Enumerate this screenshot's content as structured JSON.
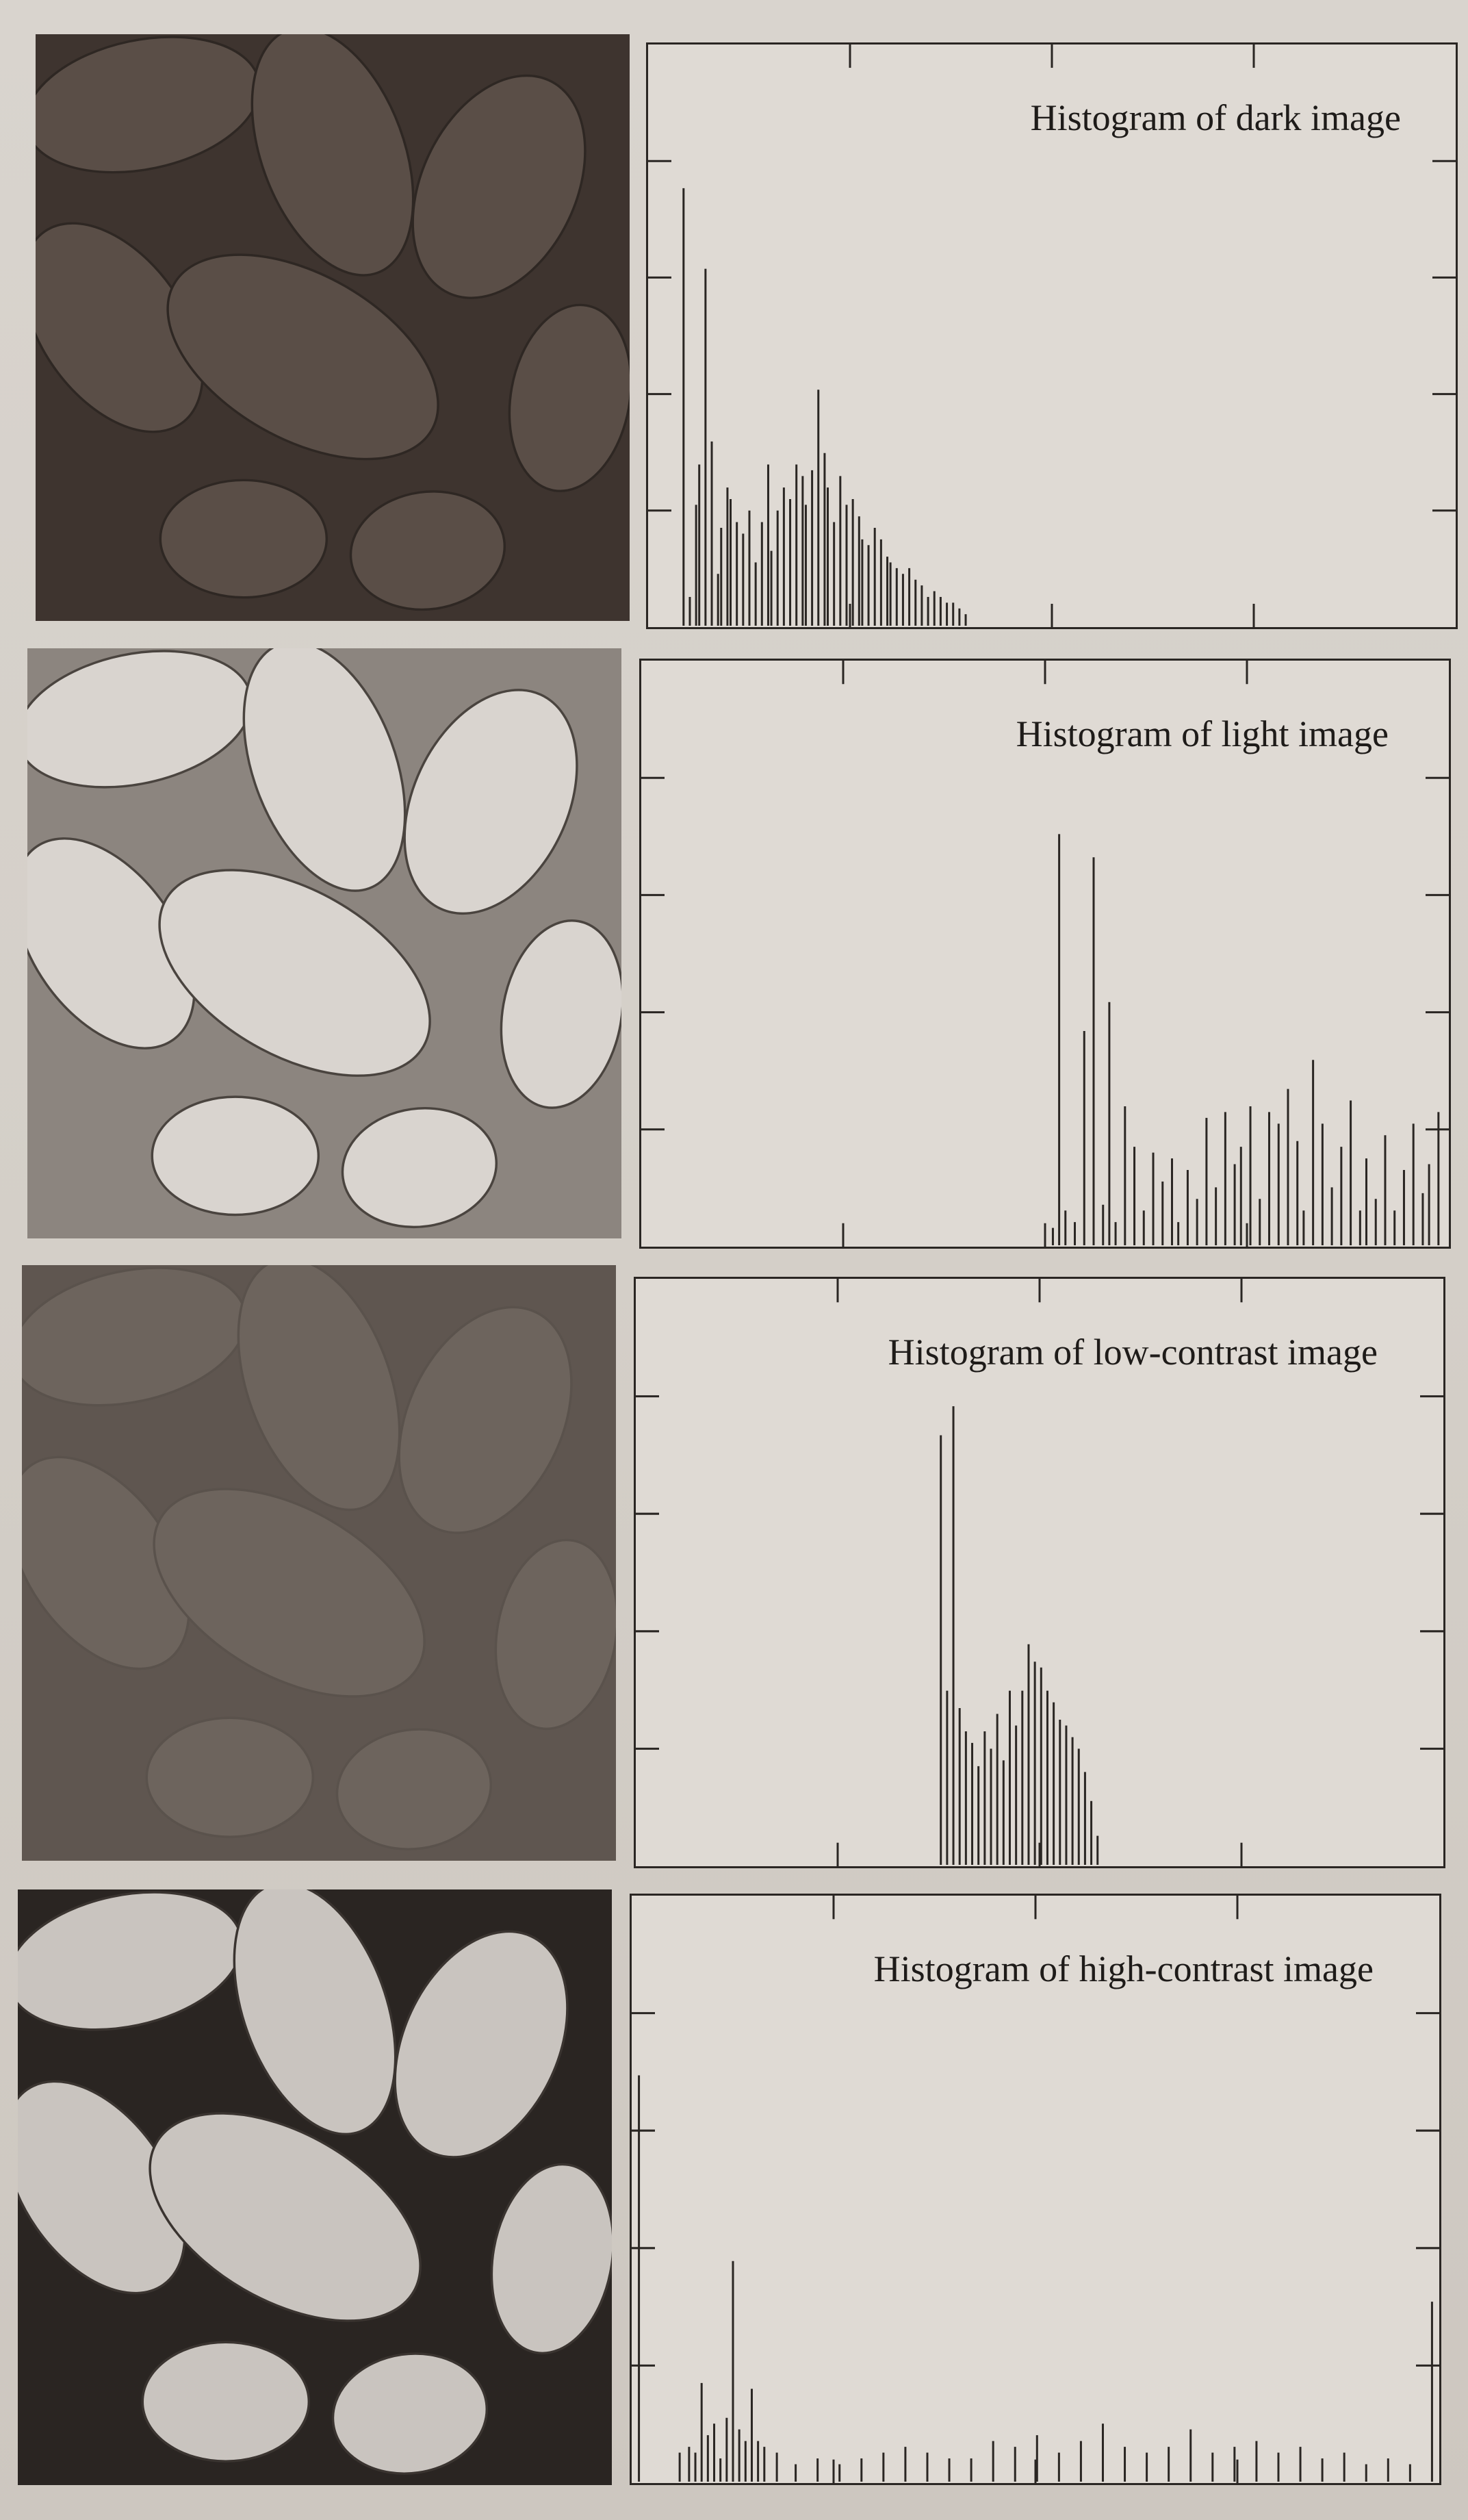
{
  "colors": {
    "page_background": "#d6d1cb",
    "histogram_bars": "#2a2623"
  },
  "panels": [
    {
      "image": "dark-image",
      "tone": {
        "base": "#3e342f",
        "blob": "#5a4e47",
        "spot": "#2e2723"
      }
    },
    {
      "image": "light-image",
      "tone": {
        "base": "#8c857f",
        "blob": "#d9d4cf",
        "spot": "#4a443f"
      }
    },
    {
      "image": "low-contrast-image",
      "tone": {
        "base": "#5f5650",
        "blob": "#6d645d",
        "spot": "#5a524c"
      }
    },
    {
      "image": "high-contrast-image",
      "tone": {
        "base": "#2a2522",
        "blob": "#c9c4bf",
        "spot": "#3a3430"
      }
    }
  ],
  "chart_data": [
    {
      "type": "bar",
      "title": "Histogram of dark image",
      "xlabel": "",
      "ylabel": "",
      "xlim": [
        0,
        255
      ],
      "ylim": [
        0,
        1
      ],
      "grid": false,
      "x": [
        10,
        12,
        14,
        15,
        17,
        19,
        21,
        22,
        24,
        25,
        27,
        29,
        31,
        33,
        35,
        37,
        38,
        40,
        42,
        44,
        46,
        48,
        49,
        51,
        53,
        55,
        56,
        58,
        60,
        62,
        64,
        66,
        67,
        69,
        71,
        73,
        75,
        76,
        78,
        80,
        82,
        84,
        86,
        88,
        90,
        92,
        94,
        96,
        98,
        100
      ],
      "values": [
        0.76,
        0.05,
        0.21,
        0.28,
        0.62,
        0.32,
        0.09,
        0.17,
        0.24,
        0.22,
        0.18,
        0.16,
        0.2,
        0.11,
        0.18,
        0.28,
        0.13,
        0.2,
        0.24,
        0.22,
        0.28,
        0.26,
        0.21,
        0.27,
        0.41,
        0.3,
        0.24,
        0.18,
        0.26,
        0.21,
        0.22,
        0.19,
        0.15,
        0.14,
        0.17,
        0.15,
        0.12,
        0.11,
        0.1,
        0.09,
        0.1,
        0.08,
        0.07,
        0.05,
        0.06,
        0.05,
        0.04,
        0.04,
        0.03,
        0.02
      ]
    },
    {
      "type": "bar",
      "title": "Histogram of light image",
      "xlabel": "",
      "ylabel": "",
      "xlim": [
        0,
        255
      ],
      "ylim": [
        0,
        1
      ],
      "grid": false,
      "x": [
        130,
        132,
        134,
        137,
        140,
        143,
        146,
        148,
        150,
        153,
        156,
        159,
        162,
        165,
        168,
        170,
        173,
        176,
        179,
        182,
        185,
        188,
        190,
        193,
        196,
        199,
        202,
        205,
        208,
        210,
        213,
        216,
        219,
        222,
        225,
        228,
        230,
        233,
        236,
        239,
        242,
        245,
        248,
        250,
        253
      ],
      "values": [
        0.03,
        0.71,
        0.06,
        0.04,
        0.37,
        0.67,
        0.07,
        0.42,
        0.04,
        0.24,
        0.17,
        0.06,
        0.16,
        0.11,
        0.15,
        0.04,
        0.13,
        0.08,
        0.22,
        0.1,
        0.23,
        0.14,
        0.17,
        0.24,
        0.08,
        0.23,
        0.21,
        0.27,
        0.18,
        0.06,
        0.32,
        0.21,
        0.1,
        0.17,
        0.25,
        0.06,
        0.15,
        0.08,
        0.19,
        0.06,
        0.13,
        0.21,
        0.09,
        0.14,
        0.23
      ]
    },
    {
      "type": "bar",
      "title": "Histogram of low-contrast image",
      "xlabel": "",
      "ylabel": "",
      "xlim": [
        0,
        255
      ],
      "ylim": [
        0,
        1
      ],
      "grid": false,
      "x": [
        96,
        98,
        100,
        102,
        104,
        106,
        108,
        110,
        112,
        114,
        116,
        118,
        120,
        122,
        124,
        126,
        128,
        130,
        132,
        134,
        136,
        138,
        140,
        142,
        144,
        146
      ],
      "values": [
        0.74,
        0.3,
        0.79,
        0.27,
        0.23,
        0.21,
        0.17,
        0.23,
        0.2,
        0.26,
        0.18,
        0.3,
        0.24,
        0.3,
        0.38,
        0.35,
        0.34,
        0.3,
        0.28,
        0.25,
        0.24,
        0.22,
        0.2,
        0.16,
        0.11,
        0.05
      ]
    },
    {
      "type": "bar",
      "title": "Histogram of high-contrast image",
      "xlabel": "",
      "ylabel": "",
      "xlim": [
        0,
        255
      ],
      "ylim": [
        0,
        1
      ],
      "grid": false,
      "x": [
        1,
        14,
        17,
        19,
        21,
        23,
        25,
        27,
        29,
        31,
        33,
        35,
        37,
        39,
        41,
        45,
        51,
        58,
        65,
        72,
        79,
        86,
        93,
        100,
        107,
        114,
        121,
        128,
        135,
        142,
        149,
        156,
        163,
        170,
        177,
        184,
        191,
        198,
        205,
        212,
        219,
        226,
        233,
        240,
        247,
        254
      ],
      "values": [
        0.7,
        0.05,
        0.06,
        0.05,
        0.17,
        0.08,
        0.1,
        0.04,
        0.11,
        0.38,
        0.09,
        0.07,
        0.16,
        0.07,
        0.06,
        0.05,
        0.03,
        0.04,
        0.03,
        0.04,
        0.05,
        0.06,
        0.05,
        0.04,
        0.04,
        0.07,
        0.06,
        0.08,
        0.05,
        0.07,
        0.1,
        0.06,
        0.05,
        0.06,
        0.09,
        0.05,
        0.06,
        0.07,
        0.05,
        0.06,
        0.04,
        0.05,
        0.03,
        0.04,
        0.03,
        0.31
      ]
    }
  ]
}
